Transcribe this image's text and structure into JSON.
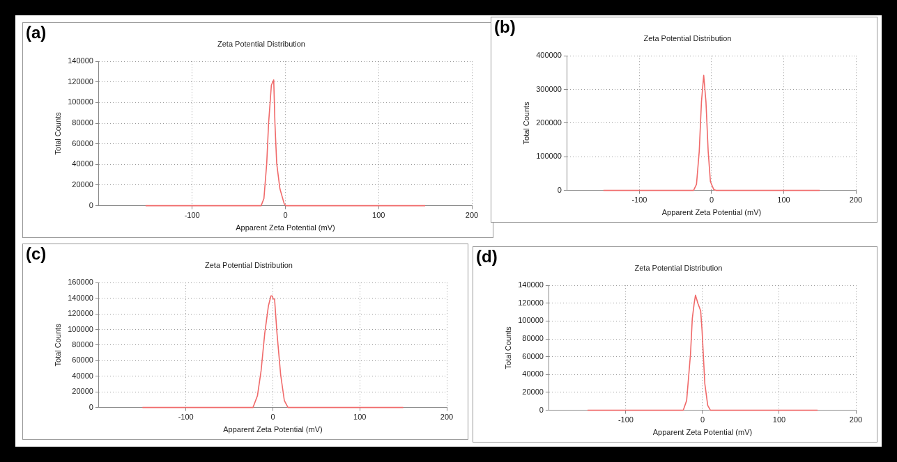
{
  "chart_data": [
    {
      "type": "line",
      "title": "Zeta Potential Distribution",
      "xlabel": "Apparent Zeta Potential (mV)",
      "ylabel": "Total Counts",
      "annotations": [
        "(a)"
      ],
      "grid": true,
      "marker": "none",
      "xlim": [
        -200,
        200
      ],
      "xticks": [
        -100,
        0,
        100,
        200
      ],
      "ylim": [
        0,
        140000
      ],
      "yticks": [
        0,
        20000,
        40000,
        60000,
        80000,
        100000,
        120000,
        140000
      ],
      "series": [
        {
          "color": "#f06a6a",
          "x": [
            -150,
            -26,
            -23,
            -20,
            -18,
            -15,
            -12.5,
            -11.2,
            -9.3,
            -5.9,
            -1.3,
            0.5,
            150
          ],
          "values": [
            0,
            0,
            7000,
            41000,
            80000,
            117000,
            122000,
            80000,
            41000,
            16600,
            2000,
            0,
            0
          ]
        }
      ]
    },
    {
      "type": "line",
      "title": "Zeta Potential Distribution",
      "xlabel": "Apparent Zeta Potential (mV)",
      "ylabel": "Total Counts",
      "annotations": [
        "(b)"
      ],
      "grid": true,
      "marker": "none",
      "xlim": [
        -200,
        200
      ],
      "xticks": [
        -100,
        0,
        100,
        200
      ],
      "ylim": [
        0,
        400000
      ],
      "yticks": [
        0,
        100000,
        200000,
        300000,
        400000
      ],
      "series": [
        {
          "color": "#f06a6a",
          "x": [
            -150,
            -24.9,
            -20.9,
            -17.1,
            -14,
            -10.9,
            -7.8,
            -4.7,
            -1.6,
            3.1,
            6.2,
            150
          ],
          "values": [
            0,
            0,
            18000,
            116000,
            264000,
            342000,
            264000,
            116000,
            26000,
            2000,
            0,
            0
          ]
        }
      ]
    },
    {
      "type": "line",
      "title": "Zeta Potential Distribution",
      "xlabel": "Apparent Zeta Potential (mV)",
      "ylabel": "Total Counts",
      "annotations": [
        "(c)"
      ],
      "grid": true,
      "marker": "none",
      "xlim": [
        -200,
        200
      ],
      "xticks": [
        -100,
        0,
        100,
        200
      ],
      "ylim": [
        0,
        160000
      ],
      "yticks": [
        0,
        20000,
        40000,
        60000,
        80000,
        100000,
        120000,
        140000,
        160000
      ],
      "series": [
        {
          "color": "#f06a6a",
          "x": [
            -150,
            -22.8,
            -17.7,
            -13.5,
            -9.3,
            -5.1,
            -2.2,
            -0.8,
            0.6,
            2,
            4.8,
            9,
            13.2,
            17.4,
            150
          ],
          "values": [
            0,
            0,
            15000,
            47000,
            95000,
            130000,
            143000,
            143000,
            139000,
            139000,
            95000,
            42000,
            9000,
            0,
            0
          ]
        }
      ]
    },
    {
      "type": "line",
      "title": "Zeta Potential Distribution",
      "xlabel": "Apparent Zeta Potential (mV)",
      "ylabel": "Total Counts",
      "annotations": [
        "(d)"
      ],
      "grid": true,
      "marker": "none",
      "xlim": [
        -200,
        200
      ],
      "xticks": [
        -100,
        0,
        100,
        200
      ],
      "ylim": [
        0,
        140000
      ],
      "yticks": [
        0,
        20000,
        40000,
        60000,
        80000,
        100000,
        120000,
        140000
      ],
      "series": [
        {
          "color": "#f06a6a",
          "x": [
            -150,
            -25.1,
            -20.7,
            -15.7,
            -13.3,
            -10.9,
            -9.2,
            -5.9,
            -2.4,
            -0.6,
            3,
            6.8,
            10.3,
            150
          ],
          "values": [
            0,
            0,
            10900,
            62500,
            103000,
            119600,
            129000,
            119600,
            111400,
            89700,
            29900,
            5400,
            0,
            0
          ]
        }
      ]
    }
  ]
}
